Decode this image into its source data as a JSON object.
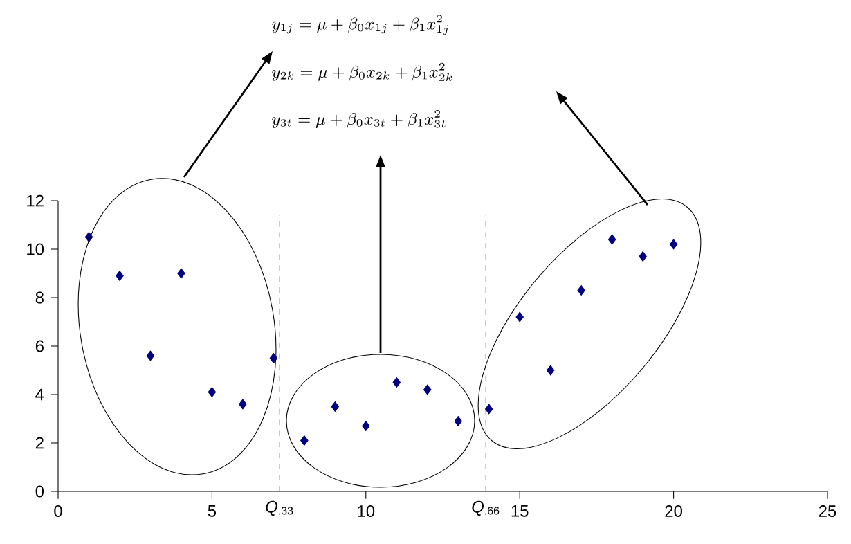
{
  "chart_data": {
    "type": "scatter",
    "x": [
      1,
      2,
      3,
      4,
      5,
      6,
      7,
      8,
      9,
      10,
      11,
      12,
      13,
      14,
      15,
      16,
      17,
      18,
      19,
      20
    ],
    "values": [
      10.5,
      8.9,
      5.6,
      9.0,
      4.1,
      3.6,
      5.5,
      2.1,
      3.5,
      2.7,
      4.5,
      4.2,
      2.9,
      3.4,
      7.2,
      5.0,
      8.3,
      10.4,
      9.7,
      10.2
    ],
    "color": "#000080",
    "marker": "diamond",
    "grid": false,
    "xlim": [
      0,
      25
    ],
    "xticks": [
      0,
      5,
      10,
      15,
      20,
      25
    ],
    "ylim": [
      0,
      12
    ],
    "yticks": [
      0,
      2,
      4,
      6,
      8,
      10,
      12
    ],
    "ref_lines": [
      {
        "axis": "x",
        "value": 7.2,
        "label": "*Q*$_{.33}$",
        "color": "#404040",
        "line_style": "dashed"
      },
      {
        "axis": "x",
        "value": 13.9,
        "label": "*Q*$_{.66}$",
        "color": "#404040",
        "line_style": "dashed"
      }
    ],
    "annotations": [
      "y_{1j} = \\mu + \\beta_0 x_{1j} + \\beta_1 x_{1j}^2",
      "y_{2k} = \\mu + \\beta_0 x_{2k} + \\beta_1 x_{2k}^2",
      "y_{3t} = \\mu + \\beta_0 x_{3t} + \\beta_1 x_{3t}^2"
    ]
  }
}
